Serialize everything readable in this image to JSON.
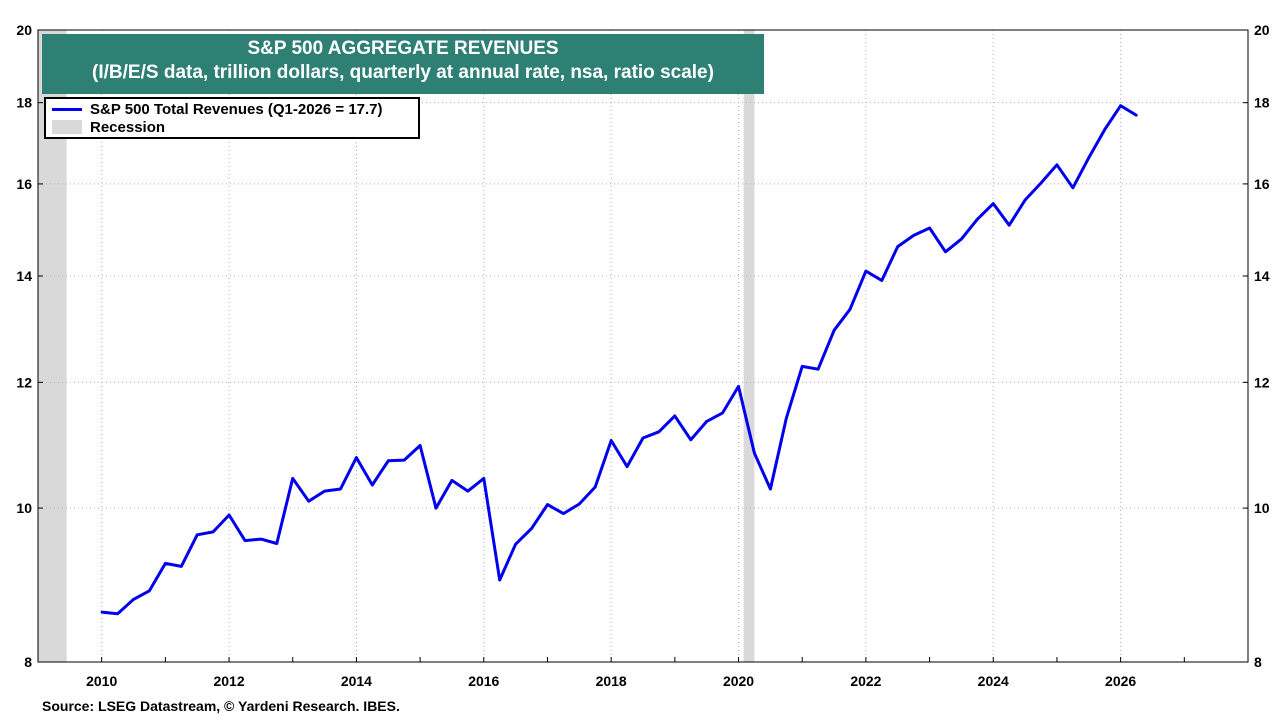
{
  "chart_data": {
    "type": "line",
    "title": "S&P 500 AGGREGATE REVENUES",
    "subtitle": "(I/B/E/S data, trillion dollars, quarterly at annual rate, nsa, ratio scale)",
    "y_scale": "log",
    "ylim": [
      8,
      20
    ],
    "y_ticks": [
      8,
      10,
      12,
      14,
      16,
      18,
      20
    ],
    "xlim": [
      2009.0,
      2028.0
    ],
    "x_ticks": [
      2010,
      2012,
      2014,
      2016,
      2018,
      2020,
      2022,
      2024,
      2026
    ],
    "grid": true,
    "legend_position": "top-left",
    "series": [
      {
        "name": "S&P 500 Total Revenues (Q1-2026 = 17.7)",
        "color": "#0000ee",
        "x": [
          2010.0,
          2010.25,
          2010.5,
          2010.75,
          2011.0,
          2011.25,
          2011.5,
          2011.75,
          2012.0,
          2012.25,
          2012.5,
          2012.75,
          2013.0,
          2013.25,
          2013.5,
          2013.75,
          2014.0,
          2014.25,
          2014.5,
          2014.75,
          2015.0,
          2015.25,
          2015.5,
          2015.75,
          2016.0,
          2016.25,
          2016.5,
          2016.75,
          2017.0,
          2017.25,
          2017.5,
          2017.75,
          2018.0,
          2018.25,
          2018.5,
          2018.75,
          2019.0,
          2019.25,
          2019.5,
          2019.75,
          2020.0,
          2020.25,
          2020.5,
          2020.75,
          2021.0,
          2021.25,
          2021.5,
          2021.75,
          2022.0,
          2022.25,
          2022.5,
          2022.75,
          2023.0,
          2023.25,
          2023.5,
          2023.75,
          2024.0,
          2024.25,
          2024.5,
          2024.75,
          2025.0,
          2025.25,
          2025.5,
          2025.75,
          2026.0,
          2026.25
        ],
        "values": [
          8.6,
          8.58,
          8.76,
          8.87,
          9.23,
          9.19,
          9.62,
          9.66,
          9.9,
          9.54,
          9.56,
          9.5,
          10.44,
          10.1,
          10.25,
          10.28,
          10.76,
          10.34,
          10.71,
          10.72,
          10.95,
          10.0,
          10.41,
          10.25,
          10.44,
          9.01,
          9.49,
          9.71,
          10.05,
          9.92,
          10.06,
          10.31,
          11.03,
          10.62,
          11.07,
          11.17,
          11.43,
          11.04,
          11.34,
          11.48,
          11.93,
          10.83,
          10.28,
          11.39,
          12.28,
          12.23,
          12.94,
          13.34,
          14.1,
          13.91,
          14.61,
          14.85,
          15.01,
          14.5,
          14.77,
          15.2,
          15.55,
          15.07,
          15.63,
          16.02,
          16.45,
          15.91,
          16.62,
          17.31,
          17.92,
          17.67
        ]
      }
    ],
    "recession_label": "Recession",
    "recession_color": "#d9d9d9",
    "recessions": [
      [
        2008.9,
        2009.45
      ],
      [
        2020.08,
        2020.25
      ]
    ],
    "source": "Source: LSEG Datastream, © Yardeni Research. IBES."
  }
}
